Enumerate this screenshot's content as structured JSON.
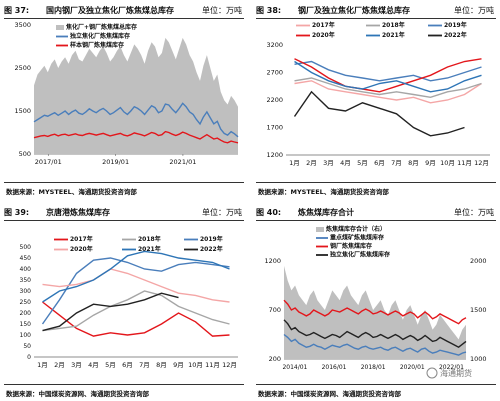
{
  "charts": [
    {
      "figure": "图 37:",
      "title": "国内钢厂及独立焦化厂炼焦煤总库存",
      "unit": "单位：万吨",
      "source": "数据来源：MYSTEEL、海通期货投资咨询部"
    },
    {
      "figure": "图 38:",
      "title": "钢厂及独立焦化厂炼焦煤总库存",
      "unit": "单位：万吨",
      "source": "数据来源：MYSTEEL、海通期货投资咨询部"
    },
    {
      "figure": "图 39:",
      "title": "京唐港炼焦煤库存",
      "unit": "单位：万吨",
      "source": "数据来源：中国煤炭资源网、海通期货投资咨询部"
    },
    {
      "figure": "图 40:",
      "title": "炼焦煤库存合计",
      "unit": "单位：万吨",
      "source": "数据来源：中国煤炭资源网、海通期货投资咨询部"
    }
  ],
  "watermark": "海通期货",
  "chart_data": [
    {
      "type": "area",
      "x_ticks": [
        "2017/01",
        "2019/01",
        "2021/01"
      ],
      "ylim": [
        500,
        3500
      ],
      "y_ticks": [
        500,
        1500,
        2500,
        3500
      ],
      "legend_placement": "top-left",
      "series": [
        {
          "name": "焦化厂+钢厂炼焦煤总库存",
          "kind": "area",
          "color": "#bfbfbf",
          "values": [
            2100,
            2350,
            2450,
            2550,
            2400,
            2600,
            2700,
            2500,
            2650,
            2750,
            2600,
            2800,
            2900,
            2700,
            2650,
            2800,
            2950,
            2850,
            2750,
            2900,
            3000,
            2850,
            2650,
            2750,
            2900,
            3000,
            2800,
            2650,
            2850,
            3050,
            2950,
            2800,
            2600,
            2900,
            3100,
            3000,
            2750,
            2850,
            3200,
            3100,
            2900,
            2700,
            2950,
            3200,
            3050,
            2800,
            2650,
            2400,
            2200,
            2550,
            2800,
            2500,
            2200,
            2350,
            1950,
            1750,
            1650,
            1850,
            1750,
            1600
          ]
        },
        {
          "name": "独立焦化厂炼焦煤库存",
          "kind": "line",
          "color": "#4a7ebb",
          "values": [
            1250,
            1300,
            1350,
            1400,
            1380,
            1420,
            1460,
            1400,
            1450,
            1500,
            1420,
            1480,
            1520,
            1450,
            1420,
            1480,
            1550,
            1500,
            1460,
            1520,
            1560,
            1500,
            1420,
            1460,
            1520,
            1580,
            1480,
            1420,
            1500,
            1600,
            1560,
            1500,
            1420,
            1520,
            1620,
            1580,
            1460,
            1500,
            1660,
            1640,
            1540,
            1460,
            1560,
            1680,
            1600,
            1480,
            1420,
            1300,
            1200,
            1360,
            1480,
            1340,
            1200,
            1260,
            1080,
            980,
            940,
            1020,
            970,
            900
          ]
        },
        {
          "name": "样本钢厂炼焦煤库存",
          "kind": "line",
          "color": "#e3161b",
          "values": [
            880,
            900,
            920,
            930,
            910,
            940,
            960,
            920,
            950,
            960,
            930,
            950,
            970,
            940,
            930,
            960,
            980,
            960,
            940,
            960,
            980,
            950,
            920,
            940,
            960,
            980,
            940,
            920,
            950,
            990,
            970,
            950,
            920,
            960,
            1000,
            980,
            930,
            950,
            1020,
            1000,
            960,
            930,
            960,
            1010,
            980,
            940,
            910,
            880,
            850,
            900,
            950,
            900,
            850,
            870,
            820,
            780,
            760,
            800,
            780,
            760
          ]
        }
      ]
    },
    {
      "type": "line",
      "categories": [
        "1月",
        "2月",
        "3月",
        "4月",
        "5月",
        "6月",
        "7月",
        "8月",
        "9月",
        "10月",
        "11月",
        "12月"
      ],
      "ylim": [
        1200,
        3200
      ],
      "y_ticks": [
        1200,
        1700,
        2200,
        2700,
        3200
      ],
      "legend_placement": "top",
      "series": [
        {
          "name": "2017年",
          "color": "#f4a6a6",
          "values": [
            2500,
            2550,
            2400,
            2350,
            2300,
            2250,
            2200,
            2250,
            2150,
            2200,
            2300,
            2500
          ]
        },
        {
          "name": "2018年",
          "color": "#a6a6a6",
          "values": [
            2550,
            2600,
            2500,
            2400,
            2350,
            2300,
            2350,
            2300,
            2250,
            2350,
            2400,
            2500
          ]
        },
        {
          "name": "2019年",
          "color": "#4a7ebb",
          "values": [
            2850,
            2900,
            2750,
            2650,
            2600,
            2550,
            2600,
            2650,
            2550,
            2600,
            2700,
            2800
          ]
        },
        {
          "name": "2020年",
          "color": "#e3161b",
          "values": [
            2950,
            2800,
            2600,
            2450,
            2400,
            2350,
            2450,
            2550,
            2650,
            2800,
            2900,
            2950
          ]
        },
        {
          "name": "2021年",
          "color": "#2e75b6",
          "values": [
            2900,
            2700,
            2550,
            2450,
            2400,
            2500,
            2550,
            2450,
            2350,
            2400,
            2550,
            2650
          ]
        },
        {
          "name": "2022年",
          "color": "#222222",
          "values": [
            1900,
            2350,
            2050,
            2000,
            2150,
            2050,
            1950,
            1700,
            1550,
            1600,
            1700,
            null
          ]
        }
      ]
    },
    {
      "type": "line",
      "categories": [
        "1月",
        "2月",
        "3月",
        "4月",
        "5月",
        "6月",
        "7月",
        "8月",
        "9月",
        "10月",
        "11月",
        "12月"
      ],
      "ylim": [
        0,
        500
      ],
      "y_ticks": [
        0,
        50,
        100,
        150,
        200,
        250,
        300,
        350,
        400,
        450,
        500
      ],
      "legend_placement": "top",
      "series": [
        {
          "name": "2017年",
          "color": "#e3161b",
          "values": [
            250,
            190,
            130,
            95,
            110,
            100,
            110,
            150,
            200,
            160,
            95,
            100
          ]
        },
        {
          "name": "2018年",
          "color": "#a6a6a6",
          "values": [
            120,
            130,
            140,
            190,
            230,
            260,
            300,
            280,
            230,
            200,
            170,
            150
          ]
        },
        {
          "name": "2019年",
          "color": "#4a7ebb",
          "values": [
            150,
            260,
            380,
            440,
            450,
            430,
            400,
            390,
            420,
            430,
            420,
            410
          ]
        },
        {
          "name": "2020年",
          "color": "#f4a6a6",
          "values": [
            330,
            320,
            330,
            350,
            400,
            380,
            350,
            320,
            290,
            280,
            260,
            250
          ]
        },
        {
          "name": "2021年",
          "color": "#2e75b6",
          "values": [
            250,
            300,
            320,
            350,
            400,
            460,
            480,
            470,
            450,
            440,
            430,
            400
          ]
        },
        {
          "name": "2022年",
          "color": "#222222",
          "values": [
            120,
            140,
            200,
            240,
            230,
            240,
            260,
            290,
            270,
            null,
            null,
            null
          ]
        }
      ]
    },
    {
      "type": "area",
      "x_ticks": [
        "2014/01",
        "2016/01",
        "2018/01",
        "2020/01",
        "2022/01"
      ],
      "ylim_left": [
        200,
        1200
      ],
      "y_ticks_left": [
        200,
        700,
        1200
      ],
      "ylim_right": [
        1000,
        2000
      ],
      "y_ticks_right": [
        1000,
        1500,
        2000
      ],
      "legend_placement": "top-left",
      "series": [
        {
          "name": "炼焦煤库存合计（右）",
          "kind": "area",
          "axis": "right",
          "color": "#bfbfbf",
          "values": [
            1950,
            1800,
            1700,
            1750,
            1650,
            1600,
            1550,
            1650,
            1700,
            1600,
            1550,
            1500,
            1600,
            1700,
            1650,
            1600,
            1700,
            1750,
            1650,
            1600,
            1550,
            1650,
            1700,
            1600,
            1500,
            1550,
            1600,
            1500,
            1450,
            1550,
            1600,
            1500,
            1400,
            1500,
            1550,
            1450,
            1350,
            1450,
            1500,
            1400,
            1300,
            1350,
            1450,
            1400,
            1350,
            1300,
            1250,
            1200,
            1300,
            1350
          ]
        },
        {
          "name": "重点煤矿炼焦煤库存",
          "kind": "line",
          "axis": "left",
          "color": "#4a7ebb",
          "values": [
            450,
            420,
            380,
            400,
            360,
            340,
            320,
            330,
            350,
            330,
            320,
            300,
            320,
            340,
            330,
            320,
            340,
            350,
            330,
            310,
            300,
            320,
            330,
            310,
            300,
            310,
            320,
            300,
            290,
            310,
            320,
            300,
            280,
            300,
            310,
            290,
            270,
            300,
            310,
            280,
            260,
            270,
            290,
            280,
            270,
            260,
            250,
            240,
            260,
            270
          ]
        },
        {
          "name": "钢厂炼焦煤库存",
          "kind": "line",
          "axis": "left",
          "color": "#e3161b",
          "values": [
            800,
            760,
            700,
            720,
            680,
            660,
            640,
            660,
            700,
            680,
            660,
            640,
            660,
            700,
            690,
            680,
            700,
            720,
            700,
            680,
            660,
            690,
            710,
            690,
            660,
            670,
            690,
            670,
            650,
            670,
            690,
            670,
            640,
            660,
            680,
            660,
            620,
            650,
            680,
            650,
            610,
            630,
            660,
            640,
            620,
            600,
            580,
            560,
            600,
            620
          ]
        },
        {
          "name": "独立焦化厂炼焦煤库存",
          "kind": "line",
          "axis": "left",
          "color": "#222222",
          "values": [
            600,
            560,
            500,
            520,
            480,
            460,
            440,
            450,
            470,
            450,
            430,
            410,
            430,
            450,
            440,
            420,
            450,
            480,
            460,
            440,
            420,
            450,
            470,
            450,
            420,
            430,
            450,
            430,
            410,
            430,
            450,
            430,
            400,
            420,
            440,
            420,
            390,
            410,
            440,
            410,
            380,
            390,
            420,
            400,
            380,
            360,
            340,
            320,
            350,
            380
          ]
        }
      ]
    }
  ]
}
